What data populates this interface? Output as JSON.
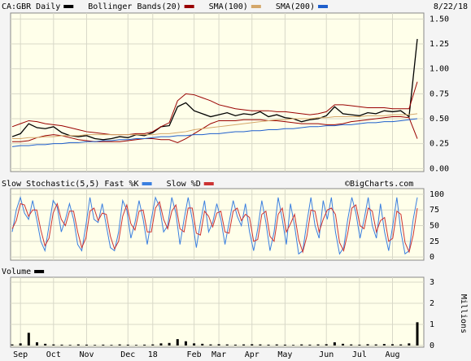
{
  "chart_data": [
    {
      "type": "line",
      "date": "8/22/18",
      "ylim": [
        -0.03,
        1.56
      ],
      "grid": true,
      "yticks": [
        {
          "value": 0,
          "label": "0.00"
        },
        {
          "value": 0.25,
          "label": "0.25"
        },
        {
          "value": 0.5,
          "label": "0.50"
        },
        {
          "value": 0.75,
          "label": "0.75"
        },
        {
          "value": 1,
          "label": "1.00"
        },
        {
          "value": 1.25,
          "label": "1.25"
        },
        {
          "value": 1.5,
          "label": "1.50"
        }
      ],
      "series": [
        {
          "name": "CA:GBR Daily",
          "color": "#000000",
          "values": [
            0.32,
            0.35,
            0.45,
            0.41,
            0.4,
            0.42,
            0.36,
            0.33,
            0.32,
            0.33,
            0.3,
            0.29,
            0.3,
            0.32,
            0.31,
            0.34,
            0.33,
            0.36,
            0.42,
            0.43,
            0.62,
            0.66,
            0.58,
            0.55,
            0.52,
            0.54,
            0.56,
            0.53,
            0.55,
            0.54,
            0.57,
            0.52,
            0.54,
            0.51,
            0.5,
            0.47,
            0.49,
            0.5,
            0.53,
            0.62,
            0.55,
            0.54,
            0.53,
            0.56,
            0.55,
            0.58,
            0.57,
            0.58,
            0.52,
            1.3
          ]
        },
        {
          "name": "Bollinger Bands(20)",
          "color": "#990000",
          "values": [
            0.42,
            0.45,
            0.48,
            0.47,
            0.45,
            0.44,
            0.43,
            0.41,
            0.39,
            0.37,
            0.36,
            0.35,
            0.34,
            0.34,
            0.34,
            0.35,
            0.35,
            0.37,
            0.42,
            0.46,
            0.68,
            0.75,
            0.74,
            0.71,
            0.68,
            0.64,
            0.62,
            0.6,
            0.59,
            0.58,
            0.58,
            0.58,
            0.57,
            0.57,
            0.56,
            0.55,
            0.54,
            0.55,
            0.57,
            0.64,
            0.64,
            0.63,
            0.62,
            0.61,
            0.61,
            0.61,
            0.6,
            0.6,
            0.6,
            0.87
          ],
          "lower": [
            0.27,
            0.27,
            0.28,
            0.31,
            0.33,
            0.34,
            0.33,
            0.31,
            0.29,
            0.28,
            0.27,
            0.27,
            0.27,
            0.27,
            0.28,
            0.29,
            0.3,
            0.3,
            0.29,
            0.29,
            0.26,
            0.3,
            0.35,
            0.4,
            0.45,
            0.48,
            0.48,
            0.48,
            0.49,
            0.49,
            0.49,
            0.48,
            0.48,
            0.47,
            0.46,
            0.45,
            0.45,
            0.45,
            0.44,
            0.44,
            0.45,
            0.47,
            0.48,
            0.49,
            0.5,
            0.51,
            0.52,
            0.52,
            0.51,
            0.3
          ]
        },
        {
          "name": "SMA(100)",
          "color": "#d4a76a",
          "values": [
            0.3,
            0.3,
            0.31,
            0.31,
            0.32,
            0.32,
            0.33,
            0.33,
            0.33,
            0.34,
            0.34,
            0.34,
            0.34,
            0.34,
            0.34,
            0.34,
            0.34,
            0.34,
            0.35,
            0.35,
            0.36,
            0.37,
            0.39,
            0.4,
            0.41,
            0.42,
            0.43,
            0.44,
            0.45,
            0.46,
            0.47,
            0.48,
            0.49,
            0.49,
            0.5,
            0.5,
            0.5,
            0.51,
            0.51,
            0.52,
            0.52,
            0.52,
            0.52,
            0.53,
            0.53,
            0.53,
            0.54,
            0.54,
            0.54,
            0.55
          ]
        },
        {
          "name": "SMA(200)",
          "color": "#1f5fcc",
          "values": [
            0.22,
            0.23,
            0.23,
            0.24,
            0.24,
            0.25,
            0.25,
            0.26,
            0.26,
            0.27,
            0.27,
            0.28,
            0.28,
            0.29,
            0.29,
            0.3,
            0.3,
            0.31,
            0.32,
            0.32,
            0.33,
            0.33,
            0.34,
            0.34,
            0.35,
            0.35,
            0.36,
            0.37,
            0.37,
            0.38,
            0.38,
            0.39,
            0.39,
            0.4,
            0.4,
            0.41,
            0.42,
            0.42,
            0.43,
            0.43,
            0.44,
            0.44,
            0.45,
            0.46,
            0.46,
            0.47,
            0.47,
            0.48,
            0.49,
            0.5
          ]
        }
      ]
    },
    {
      "type": "line",
      "title": "Slow Stochastic(5,5)",
      "credit": "©BigCharts.com",
      "ylim": [
        -5,
        109
      ],
      "grid": true,
      "yticks": [
        0,
        25,
        50,
        75,
        100
      ],
      "series": [
        {
          "name": "Fast %K",
          "color": "#3a7fe0",
          "values": [
            40,
            75,
            95,
            70,
            60,
            90,
            60,
            25,
            10,
            50,
            90,
            80,
            40,
            60,
            85,
            60,
            20,
            10,
            50,
            95,
            60,
            55,
            85,
            50,
            15,
            10,
            40,
            90,
            75,
            30,
            55,
            90,
            60,
            20,
            60,
            95,
            80,
            40,
            50,
            95,
            70,
            20,
            60,
            95,
            60,
            15,
            55,
            90,
            40,
            55,
            85,
            60,
            20,
            55,
            90,
            65,
            50,
            85,
            40,
            10,
            45,
            90,
            55,
            10,
            40,
            95,
            60,
            20,
            85,
            50,
            5,
            10,
            55,
            95,
            50,
            30,
            90,
            60,
            95,
            40,
            5,
            15,
            60,
            95,
            70,
            30,
            60,
            95,
            50,
            30,
            85,
            40,
            10,
            50,
            95,
            40,
            5,
            10,
            60,
            95
          ]
        },
        {
          "name": "Slow %D",
          "color": "#cc3333",
          "values": [
            45,
            58,
            85,
            83,
            65,
            75,
            75,
            43,
            18,
            30,
            70,
            85,
            60,
            50,
            73,
            73,
            40,
            15,
            30,
            73,
            78,
            58,
            70,
            68,
            33,
            13,
            25,
            65,
            83,
            53,
            43,
            73,
            75,
            40,
            40,
            78,
            88,
            60,
            45,
            73,
            83,
            45,
            40,
            78,
            78,
            38,
            35,
            73,
            65,
            48,
            70,
            73,
            40,
            38,
            73,
            78,
            58,
            68,
            63,
            25,
            28,
            68,
            73,
            33,
            25,
            68,
            78,
            40,
            53,
            68,
            28,
            8,
            33,
            75,
            73,
            40,
            60,
            75,
            78,
            68,
            23,
            10,
            38,
            78,
            83,
            50,
            45,
            78,
            73,
            40,
            58,
            63,
            25,
            30,
            73,
            68,
            23,
            8,
            35,
            78
          ]
        }
      ]
    },
    {
      "type": "bar",
      "y_label": "Millions",
      "ylim": [
        -0.08,
        3.23
      ],
      "grid": true,
      "yticks": [
        0,
        1,
        2,
        3
      ],
      "categories": [
        null,
        "Sep",
        null,
        null,
        null,
        "Oct",
        null,
        null,
        null,
        "Nov",
        null,
        null,
        null,
        null,
        "Dec",
        null,
        null,
        "18",
        null,
        null,
        null,
        null,
        "Feb",
        null,
        null,
        "Mar",
        null,
        null,
        null,
        "Apr",
        null,
        null,
        null,
        "May",
        null,
        null,
        null,
        null,
        "Jun",
        null,
        null,
        null,
        "Jul",
        null,
        null,
        null,
        "Aug",
        null,
        null,
        null
      ],
      "series": [
        {
          "name": "Volume",
          "color": "#000000",
          "values": [
            0.05,
            0.1,
            0.6,
            0.15,
            0.08,
            0.05,
            0.04,
            0.03,
            0.05,
            0.04,
            0.03,
            0.04,
            0.03,
            0.05,
            0.04,
            0.03,
            0.04,
            0.05,
            0.1,
            0.12,
            0.3,
            0.2,
            0.1,
            0.08,
            0.05,
            0.06,
            0.05,
            0.04,
            0.05,
            0.06,
            0.05,
            0.04,
            0.05,
            0.04,
            0.03,
            0.05,
            0.04,
            0.05,
            0.06,
            0.15,
            0.08,
            0.05,
            0.04,
            0.06,
            0.05,
            0.07,
            0.06,
            0.05,
            0.1,
            1.1
          ]
        }
      ]
    }
  ]
}
